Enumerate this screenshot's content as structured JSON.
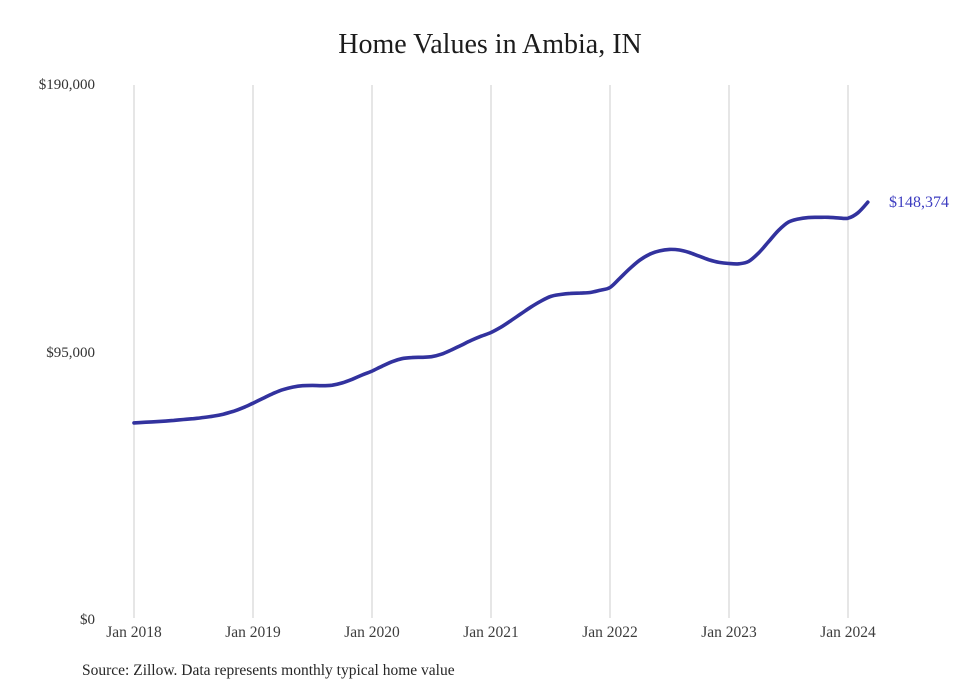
{
  "chart_data": {
    "type": "line",
    "title": "Home Values in Ambia, IN",
    "series_name": "Monthly typical home value (USD)",
    "legend": "none",
    "grid": "vertical-only",
    "ylim": [
      0,
      190000
    ],
    "line_color": "#32329e",
    "end_label_color": "#3e3ec1",
    "grid_color": "#cccccc",
    "end_label": "$148,374",
    "end_value": 148374,
    "y_ticks": [
      {
        "label": "$0",
        "value": 0
      },
      {
        "label": "$95,000",
        "value": 95000
      },
      {
        "label": "$190,000",
        "value": 190000
      }
    ],
    "x_ticks": [
      {
        "label": "Jan 2018",
        "month_index": 0
      },
      {
        "label": "Jan 2019",
        "month_index": 12
      },
      {
        "label": "Jan 2020",
        "month_index": 24
      },
      {
        "label": "Jan 2021",
        "month_index": 36
      },
      {
        "label": "Jan 2022",
        "month_index": 48
      },
      {
        "label": "Jan 2023",
        "month_index": 60
      },
      {
        "label": "Jan 2024",
        "month_index": 72
      }
    ],
    "x_months": [
      "2018-01",
      "2018-02",
      "2018-03",
      "2018-04",
      "2018-05",
      "2018-06",
      "2018-07",
      "2018-08",
      "2018-09",
      "2018-10",
      "2018-11",
      "2018-12",
      "2019-01",
      "2019-02",
      "2019-03",
      "2019-04",
      "2019-05",
      "2019-06",
      "2019-07",
      "2019-08",
      "2019-09",
      "2019-10",
      "2019-11",
      "2019-12",
      "2020-01",
      "2020-02",
      "2020-03",
      "2020-04",
      "2020-05",
      "2020-06",
      "2020-07",
      "2020-08",
      "2020-09",
      "2020-10",
      "2020-11",
      "2020-12",
      "2021-01",
      "2021-02",
      "2021-03",
      "2021-04",
      "2021-05",
      "2021-06",
      "2021-07",
      "2021-08",
      "2021-09",
      "2021-10",
      "2021-11",
      "2021-12",
      "2022-01",
      "2022-02",
      "2022-03",
      "2022-04",
      "2022-05",
      "2022-06",
      "2022-07",
      "2022-08",
      "2022-09",
      "2022-10",
      "2022-11",
      "2022-12",
      "2023-01",
      "2023-02",
      "2023-03",
      "2023-04",
      "2023-05",
      "2023-06",
      "2023-07",
      "2023-08",
      "2023-09",
      "2023-10",
      "2023-11",
      "2023-12",
      "2024-01",
      "2024-02",
      "2024-03"
    ],
    "values": [
      70000,
      70200,
      70400,
      70600,
      70900,
      71200,
      71500,
      71900,
      72400,
      73100,
      74100,
      75400,
      77000,
      78700,
      80400,
      81800,
      82700,
      83200,
      83300,
      83200,
      83400,
      84200,
      85500,
      87000,
      88400,
      90100,
      91700,
      92800,
      93200,
      93300,
      93500,
      94400,
      95900,
      97600,
      99300,
      100800,
      102100,
      104000,
      106300,
      108700,
      111100,
      113200,
      114900,
      115600,
      116000,
      116100,
      116300,
      117100,
      118100,
      121400,
      124800,
      127800,
      129900,
      131100,
      131600,
      131400,
      130500,
      129200,
      127900,
      127000,
      126600,
      126500,
      127400,
      130400,
      134400,
      138400,
      141300,
      142400,
      142900,
      143000,
      143000,
      142800,
      142700,
      144600,
      148374
    ]
  },
  "footer": {
    "source_note": "Source: Zillow. Data represents monthly typical home value"
  }
}
